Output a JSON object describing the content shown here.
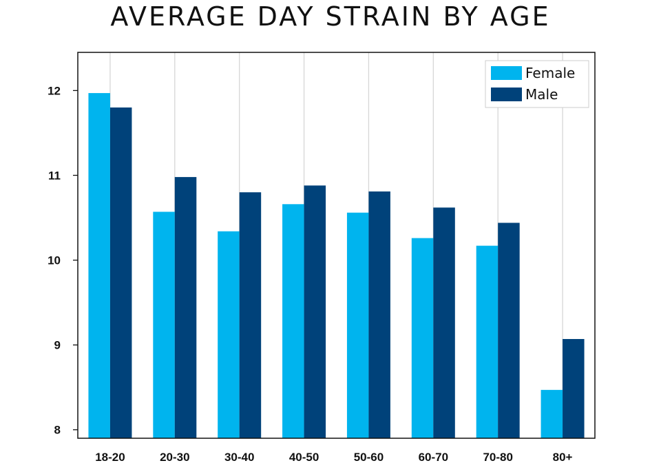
{
  "chart_data": {
    "type": "bar",
    "title": "AVERAGE DAY STRAIN BY AGE",
    "xlabel": "",
    "ylabel": "",
    "categories": [
      "18-20",
      "20-30",
      "30-40",
      "40-50",
      "50-60",
      "60-70",
      "70-80",
      "80+"
    ],
    "series": [
      {
        "name": "Female",
        "color": "#00b4ee",
        "values": [
          11.97,
          10.57,
          10.34,
          10.66,
          10.56,
          10.26,
          10.17,
          8.47
        ]
      },
      {
        "name": "Male",
        "color": "#00427a",
        "values": [
          11.8,
          10.98,
          10.8,
          10.88,
          10.81,
          10.62,
          10.44,
          9.07
        ]
      }
    ],
    "ylim": [
      7.9,
      12.45
    ],
    "yticks": [
      "8",
      "9",
      "10",
      "11",
      "12"
    ],
    "grid": "vertical",
    "legend": "top-right"
  }
}
